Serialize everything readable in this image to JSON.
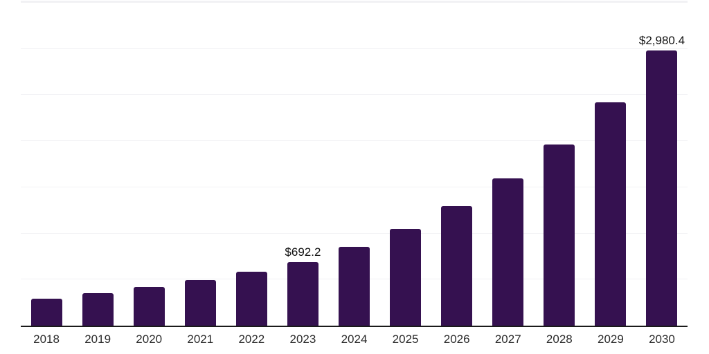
{
  "chart_data": {
    "type": "bar",
    "title": "",
    "xlabel": "",
    "ylabel": "",
    "categories": [
      "2018",
      "2019",
      "2020",
      "2021",
      "2022",
      "2023",
      "2024",
      "2025",
      "2026",
      "2027",
      "2028",
      "2029",
      "2030"
    ],
    "values": [
      295,
      350,
      423,
      494,
      585,
      692.2,
      853,
      1051,
      1294,
      1595,
      1964,
      2420,
      2980.4
    ],
    "data_labels": [
      "",
      "",
      "",
      "",
      "",
      "$692.2",
      "",
      "",
      "",
      "",
      "",
      "",
      "$2,980.4"
    ],
    "ylim": [
      0,
      3500
    ],
    "gridline_step": 500,
    "grid": "on",
    "legend": "none",
    "colors": {
      "bar": "#351150",
      "gridline": "#f1f1f4",
      "axis_line": "#1a1a1a",
      "data_label_text": "#111111",
      "tick_label_text": "#2b2b2b",
      "background": "#ffffff"
    }
  }
}
